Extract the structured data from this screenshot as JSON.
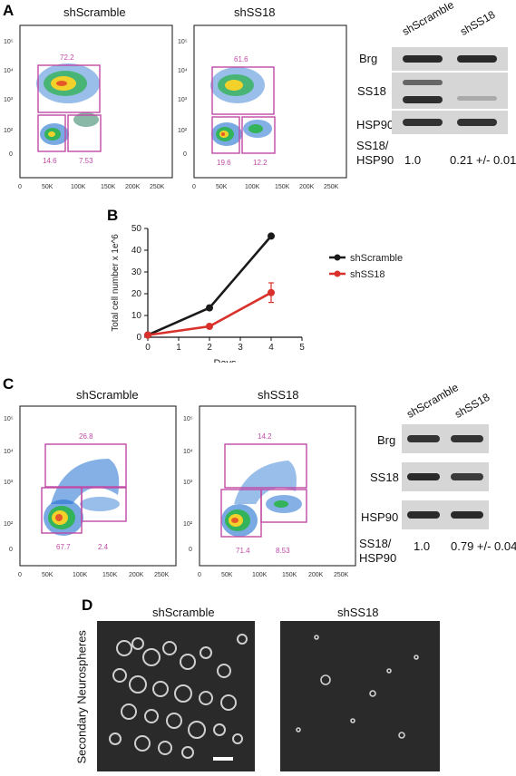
{
  "panels": {
    "A": {
      "letter": "A",
      "flow": [
        {
          "title": "shScramble",
          "gates": [
            "72.2",
            "14.6",
            "7.53"
          ]
        },
        {
          "title": "shSS18",
          "gates": [
            "61.6",
            "19.6",
            "12.2"
          ]
        }
      ],
      "x_ticks": [
        "0",
        "50K",
        "100K",
        "150K",
        "200K",
        "250K"
      ],
      "y_ticks": [
        "10⁵",
        "10⁴",
        "10³",
        "10²",
        "0"
      ],
      "western": {
        "lanes": [
          "shScramble",
          "shSS18"
        ],
        "rows": [
          "Brg",
          "SS18",
          "HSP90"
        ],
        "ratio_label_1": "SS18/",
        "ratio_label_2": "HSP90",
        "ratio_values": [
          "1.0",
          "0.21 +/- 0.01"
        ]
      }
    },
    "B": {
      "letter": "B",
      "legend": [
        "shScramble",
        "shSS18"
      ]
    },
    "C": {
      "letter": "C",
      "flow": [
        {
          "title": "shScramble",
          "gates": [
            "26.8",
            "67.7",
            "2.4"
          ]
        },
        {
          "title": "shSS18",
          "gates": [
            "14.2",
            "71.4",
            "8.53"
          ]
        }
      ],
      "x_ticks": [
        "0",
        "50K",
        "100K",
        "150K",
        "200K",
        "250K"
      ],
      "y_ticks": [
        "10⁵",
        "10⁴",
        "10³",
        "10²",
        "0"
      ],
      "western": {
        "lanes": [
          "shScramble",
          "shSS18"
        ],
        "rows": [
          "Brg",
          "SS18",
          "HSP90"
        ],
        "ratio_label_1": "SS18/",
        "ratio_label_2": "HSP90",
        "ratio_values": [
          "1.0",
          "0.79 +/- 0.04"
        ]
      }
    },
    "D": {
      "letter": "D",
      "side_label": "Secondary Neurospheres",
      "titles": [
        "shScramble",
        "shSS18"
      ]
    }
  },
  "chart_data": {
    "type": "line",
    "title": "",
    "xlabel": "Days",
    "ylabel": "Total cell number x 1e^6",
    "xlim": [
      0,
      5
    ],
    "ylim": [
      0,
      50
    ],
    "x_ticks": [
      "0",
      "1",
      "2",
      "3",
      "4",
      "5"
    ],
    "y_ticks": [
      "0",
      "10",
      "20",
      "30",
      "40",
      "50"
    ],
    "series": [
      {
        "name": "shScramble",
        "color": "#1a1a1a",
        "x": [
          0,
          2,
          4
        ],
        "y": [
          1,
          13.5,
          46.5
        ],
        "err": [
          0,
          1,
          0
        ]
      },
      {
        "name": "shSS18",
        "color": "#d9312b",
        "x": [
          0,
          2,
          4
        ],
        "y": [
          1,
          5,
          20.5
        ],
        "err": [
          0,
          0,
          4.5
        ]
      }
    ],
    "legend_position": "right"
  }
}
